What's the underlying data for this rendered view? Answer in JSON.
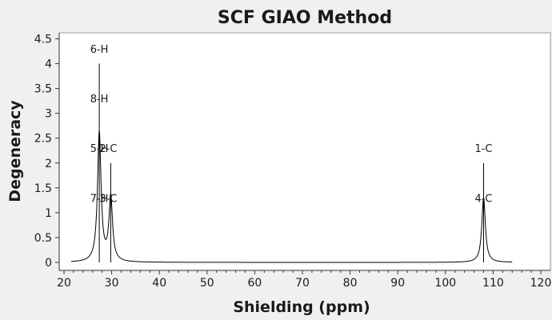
{
  "chart_data": {
    "type": "line",
    "title": "SCF GIAO Method",
    "xlabel": "Shielding (ppm)",
    "ylabel": "Degeneracy",
    "xlim": [
      20,
      120
    ],
    "ylim": [
      0,
      4.5
    ],
    "x_ticks": [
      "20",
      "30",
      "40",
      "50",
      "60",
      "70",
      "80",
      "90",
      "100",
      "110",
      "120"
    ],
    "y_ticks": [
      "0",
      "0.5",
      "1",
      "1.5",
      "2",
      "2.5",
      "3",
      "3.5",
      "4",
      "4.5"
    ],
    "grid": false,
    "spectrum_range": [
      21.5,
      114
    ],
    "peak_width_ppm": 0.45,
    "sticks": [
      {
        "x": 27.4,
        "height": 4
      },
      {
        "x": 29.8,
        "height": 2
      },
      {
        "x": 108.0,
        "height": 2
      }
    ],
    "labels": [
      {
        "text": "6-H",
        "x": 27.4,
        "y": 4.3
      },
      {
        "text": "8-H",
        "x": 27.4,
        "y": 3.3
      },
      {
        "text": "5-H",
        "x": 27.4,
        "y": 2.3
      },
      {
        "text": "2-C",
        "x": 29.3,
        "y": 2.3
      },
      {
        "text": "7-H",
        "x": 27.4,
        "y": 1.3
      },
      {
        "text": "3-C",
        "x": 29.3,
        "y": 1.3
      },
      {
        "text": "1-C",
        "x": 108.0,
        "y": 2.3
      },
      {
        "text": "4-C",
        "x": 108.0,
        "y": 1.3
      }
    ]
  },
  "colors": {
    "background": "#f0f0f0",
    "plot_area": "#ffffff",
    "curve": "#000000",
    "stick": "#000000"
  }
}
